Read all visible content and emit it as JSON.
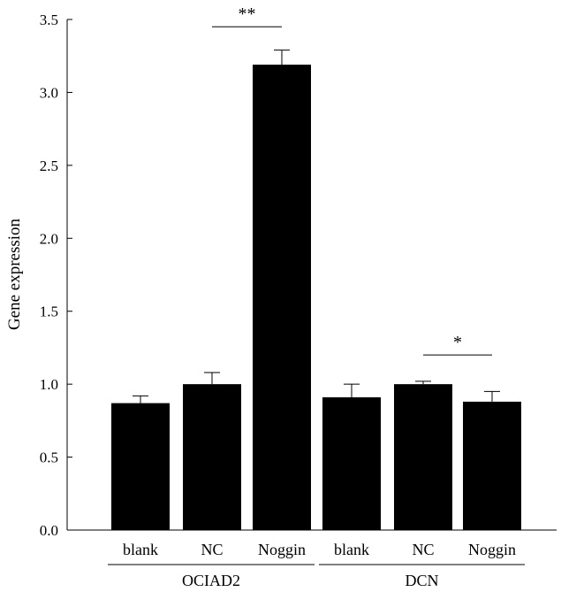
{
  "chart_data": {
    "type": "bar",
    "title": "",
    "xlabel": "",
    "ylabel": "Gene expression",
    "ylim": [
      0,
      3.5
    ],
    "yticks": [
      "0.0",
      "0.5",
      "1.0",
      "1.5",
      "2.0",
      "2.5",
      "3.0",
      "3.5"
    ],
    "grid": false,
    "bar_color": "#000000",
    "categories": [
      "blank",
      "NC",
      "Noggin",
      "blank",
      "NC",
      "Noggin"
    ],
    "values": [
      0.87,
      1.0,
      3.19,
      0.91,
      1.0,
      0.88
    ],
    "errors": [
      0.05,
      0.08,
      0.1,
      0.09,
      0.02,
      0.07
    ],
    "groups": [
      {
        "name": "OCIAD2",
        "start": 0,
        "end": 2
      },
      {
        "name": "DCN",
        "start": 3,
        "end": 5
      }
    ],
    "significance": [
      {
        "label": "**",
        "from": 1,
        "to": 2,
        "y": 3.45
      },
      {
        "label": "*",
        "from": 4,
        "to": 5,
        "y": 1.2
      }
    ]
  }
}
